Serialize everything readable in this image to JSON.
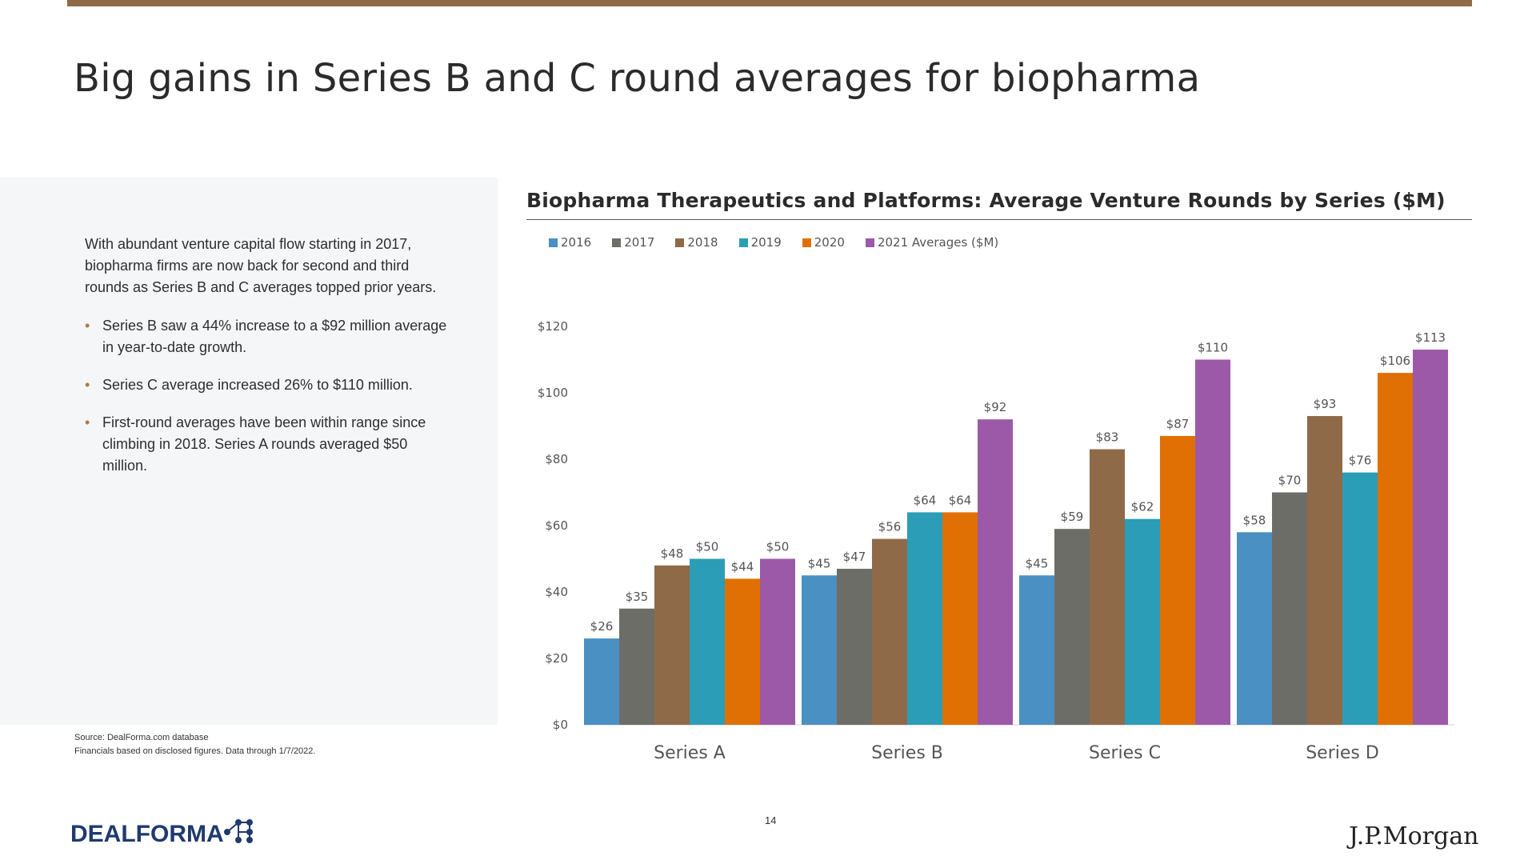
{
  "page": {
    "title": "Big gains in Series B and C round averages for biopharma",
    "intro": "With abundant venture capital flow starting in 2017, biopharma firms are now back for second and third rounds as Series B and C averages topped prior years.",
    "bullets": [
      "Series B saw a 44% increase to a $92 million average in year-to-date growth.",
      "Series C average increased 26% to $110 million.",
      "First-round averages have been within range since climbing in 2018. Series A rounds averaged $50 million."
    ],
    "source_line1": "Source: DealForma.com database",
    "source_line2": "Financials based on disclosed figures. Data through 1/7/2022.",
    "page_number": "14",
    "logo_left": "DEALFORMA",
    "logo_right": "J.P.Morgan"
  },
  "chart_data": {
    "type": "bar",
    "title": "Biopharma Therapeutics and Platforms: Average Venture Rounds by Series ($M)",
    "categories": [
      "Series A",
      "Series B",
      "Series C",
      "Series D"
    ],
    "series": [
      {
        "name": "2016",
        "color": "#4a90c2",
        "values": [
          26,
          45,
          45,
          58
        ]
      },
      {
        "name": "2017",
        "color": "#6d6d68",
        "values": [
          35,
          47,
          59,
          70
        ]
      },
      {
        "name": "2018",
        "color": "#8f6a48",
        "values": [
          48,
          56,
          83,
          93
        ]
      },
      {
        "name": "2019",
        "color": "#2b9db6",
        "values": [
          50,
          64,
          62,
          76
        ]
      },
      {
        "name": "2020",
        "color": "#e07003",
        "values": [
          44,
          64,
          87,
          106
        ]
      },
      {
        "name": "2021 Averages ($M)",
        "color": "#9b59a8",
        "values": [
          50,
          92,
          110,
          113
        ]
      }
    ],
    "data_labels": [
      [
        "$26",
        "$45",
        "$45",
        "$58"
      ],
      [
        "$35",
        "$47",
        "$59",
        "$70"
      ],
      [
        "$48",
        "$56",
        "$83",
        "$93"
      ],
      [
        "$50",
        "$64",
        "$62",
        "$76"
      ],
      [
        "$44",
        "$64",
        "$87",
        "$106"
      ],
      [
        "$50",
        "$92",
        "$110",
        "$113"
      ]
    ],
    "yticks": [
      "$0",
      "$20",
      "$40",
      "$60",
      "$80",
      "$100",
      "$120"
    ],
    "ylim": [
      0,
      120
    ],
    "legend_position": "top-left",
    "grid": false
  }
}
